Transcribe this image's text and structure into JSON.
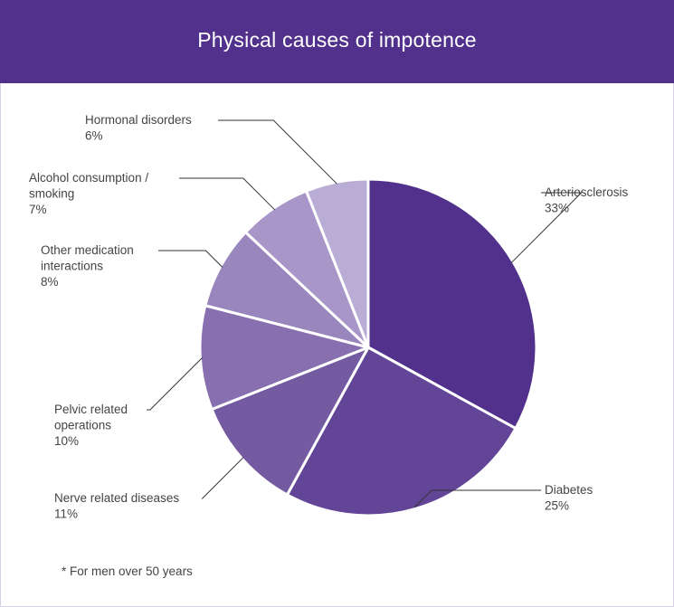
{
  "header": {
    "title": "Physical causes of impotence"
  },
  "footnote": "* For men over 50 years",
  "chart_data": {
    "type": "pie",
    "title": "Physical causes of impotence",
    "slices": [
      {
        "name": "Arteriosclerosis",
        "value": 33,
        "label": "33%",
        "color": "#51318b"
      },
      {
        "name": "Diabetes",
        "value": 25,
        "label": "25%",
        "color": "#624596"
      },
      {
        "name": "Nerve related diseases",
        "value": 11,
        "label": "11%",
        "color": "#735aa1"
      },
      {
        "name": "Pelvic related operations",
        "value": 10,
        "label": "10%",
        "color": "#876fb0"
      },
      {
        "name": "Other medication interactions",
        "value": 8,
        "label": "8%",
        "color": "#9886bd"
      },
      {
        "name": "Alcohol consumption / smoking",
        "value": 7,
        "label": "7%",
        "color": "#a996c8"
      },
      {
        "name": "Hormonal disorders",
        "value": 6,
        "label": "6%",
        "color": "#baadd5"
      }
    ],
    "label_lines": {
      "Arteriosclerosis": [
        "Arteriosclerosis"
      ],
      "Diabetes": [
        "Diabetes"
      ],
      "Nerve related diseases": [
        "Nerve related diseases"
      ],
      "Pelvic related operations": [
        "Pelvic related",
        "operations"
      ],
      "Other medication interactions": [
        "Other medication",
        "interactions"
      ],
      "Alcohol consumption / smoking": [
        "Alcohol consumption /",
        "smoking"
      ],
      "Hormonal disorders": [
        "Hormonal disorders"
      ]
    },
    "legend": "none"
  }
}
